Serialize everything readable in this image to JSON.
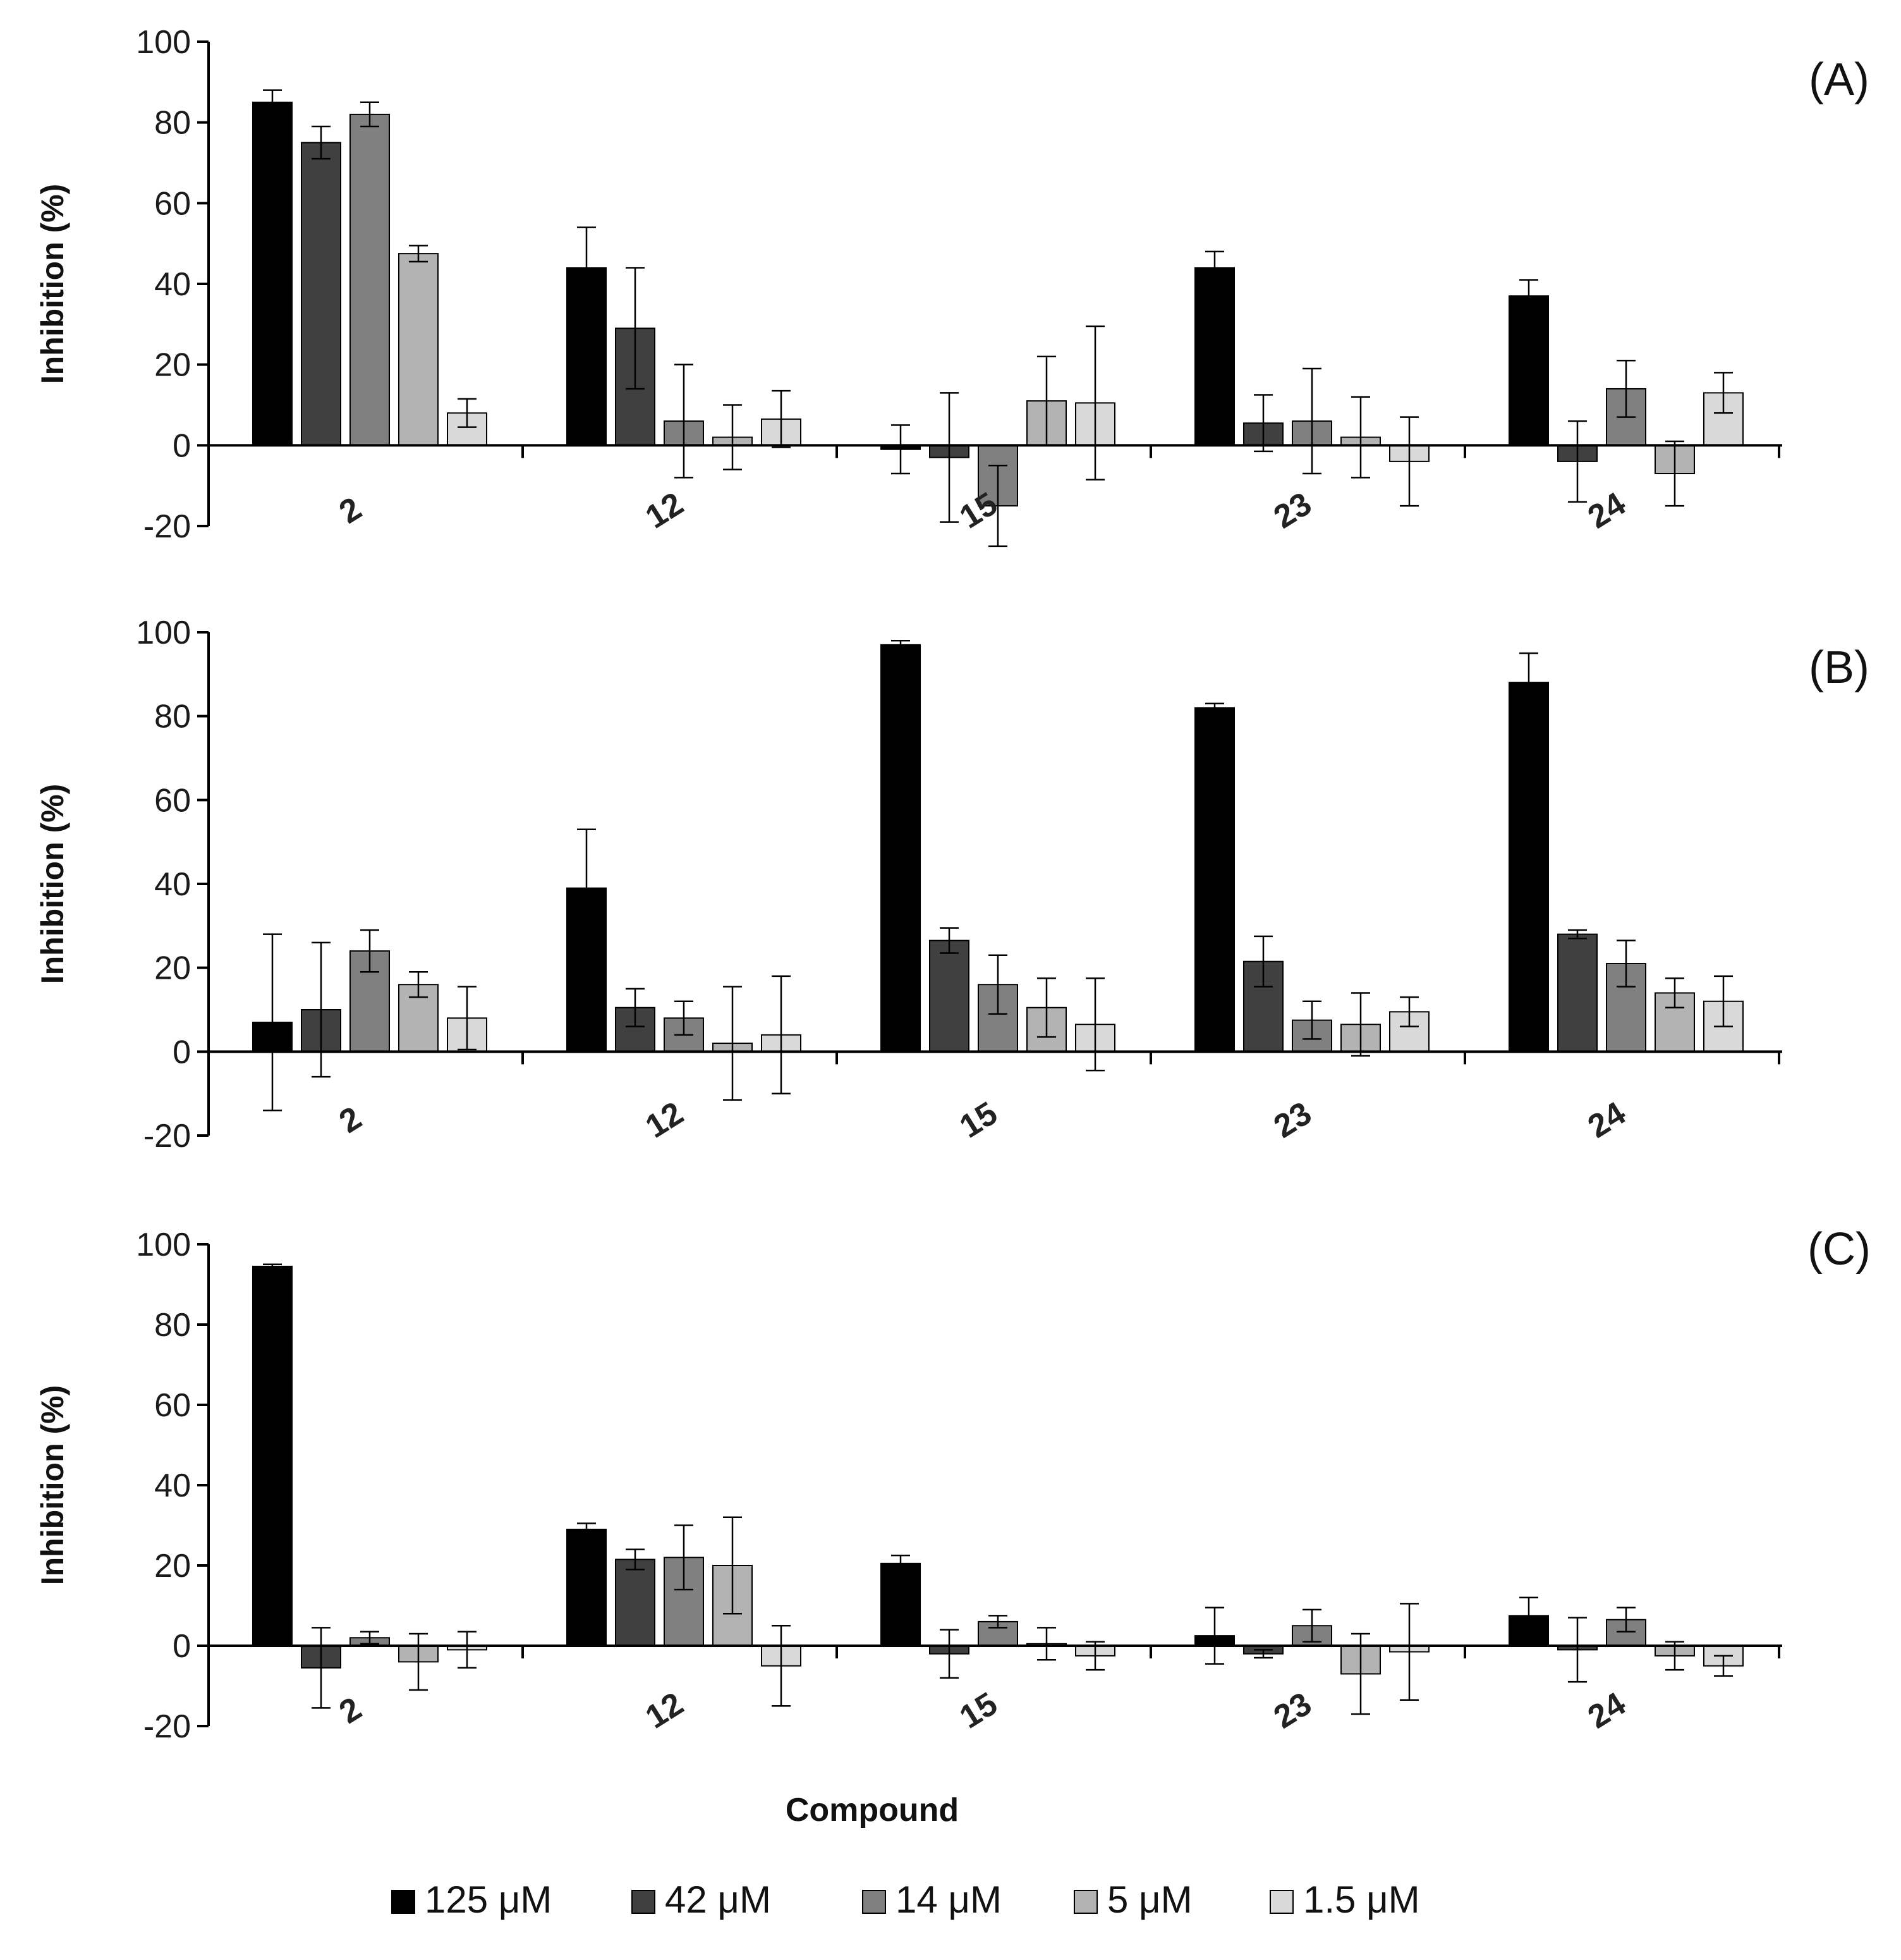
{
  "chart_data": {
    "type": "bar",
    "xlabel": "Compound",
    "ylabel": "Inhibition (%)",
    "ylim": [
      -20,
      100
    ],
    "yticks": [
      "100",
      "80",
      "60",
      "40",
      "20",
      "0",
      "-20"
    ],
    "categories": [
      "2",
      "12",
      "15",
      "23",
      "24"
    ],
    "legend": {
      "position": "bottom",
      "entries": [
        {
          "label": "125 μM",
          "color": "#000000"
        },
        {
          "label": "42 μM",
          "color": "#404040"
        },
        {
          "label": "14 μM",
          "color": "#808080"
        },
        {
          "label": "5 μM",
          "color": "#b3b3b3"
        },
        {
          "label": "1.5 μM",
          "color": "#d9d9d9"
        }
      ]
    },
    "panels": [
      {
        "label": "(A)",
        "series": [
          {
            "name": "125 μM",
            "values": [
              85,
              44,
              -1,
              44,
              37
            ],
            "errors": [
              3,
              10,
              6,
              4,
              4
            ]
          },
          {
            "name": "42 μM",
            "values": [
              75,
              29,
              -3,
              5.5,
              -4
            ],
            "errors": [
              4,
              15,
              16,
              7,
              10
            ]
          },
          {
            "name": "14 μM",
            "values": [
              82,
              6,
              -15,
              6,
              14
            ],
            "errors": [
              3,
              14,
              10,
              13,
              7
            ]
          },
          {
            "name": "5 μM",
            "values": [
              47.5,
              2,
              11,
              2,
              -7
            ],
            "errors": [
              2,
              8,
              11,
              10,
              8
            ]
          },
          {
            "name": "1.5 μM",
            "values": [
              8,
              6.5,
              10.5,
              -4,
              13
            ],
            "errors": [
              3.5,
              7,
              19,
              11,
              5
            ]
          }
        ]
      },
      {
        "label": "(B)",
        "series": [
          {
            "name": "125 μM",
            "values": [
              7,
              39,
              97,
              82,
              88
            ],
            "errors": [
              21,
              14,
              1,
              1,
              7
            ]
          },
          {
            "name": "42 μM",
            "values": [
              10,
              10.5,
              26.5,
              21.5,
              28
            ],
            "errors": [
              16,
              4.5,
              3,
              6,
              1
            ]
          },
          {
            "name": "14 μM",
            "values": [
              24,
              8,
              16,
              7.5,
              21
            ],
            "errors": [
              5,
              4,
              7,
              4.5,
              5.5
            ]
          },
          {
            "name": "5 μM",
            "values": [
              16,
              2,
              10.5,
              6.5,
              14
            ],
            "errors": [
              3,
              13.5,
              7,
              7.5,
              3.5
            ]
          },
          {
            "name": "1.5 μM",
            "values": [
              8,
              4,
              6.5,
              9.5,
              12
            ],
            "errors": [
              7.5,
              14,
              11,
              3.5,
              6
            ]
          }
        ]
      },
      {
        "label": "(C)",
        "series": [
          {
            "name": "125 μM",
            "values": [
              94.5,
              29,
              20.5,
              2.5,
              7.5
            ],
            "errors": [
              0.5,
              1.5,
              2,
              7,
              4.5
            ]
          },
          {
            "name": "42 μM",
            "values": [
              -5.5,
              21.5,
              -2,
              -2,
              -1
            ],
            "errors": [
              10,
              2.5,
              6,
              1,
              8
            ]
          },
          {
            "name": "14 μM",
            "values": [
              2,
              22,
              6,
              5,
              6.5
            ],
            "errors": [
              1.5,
              8,
              1.5,
              4,
              3
            ]
          },
          {
            "name": "5 μM",
            "values": [
              -4,
              20,
              0.5,
              -7,
              -2.5
            ],
            "errors": [
              7,
              12,
              4,
              10,
              3.5
            ]
          },
          {
            "name": "1.5 μM",
            "values": [
              -1,
              -5,
              -2.5,
              -1.5,
              -5
            ],
            "errors": [
              4.5,
              10,
              3.5,
              12,
              2.5
            ]
          }
        ]
      }
    ]
  }
}
